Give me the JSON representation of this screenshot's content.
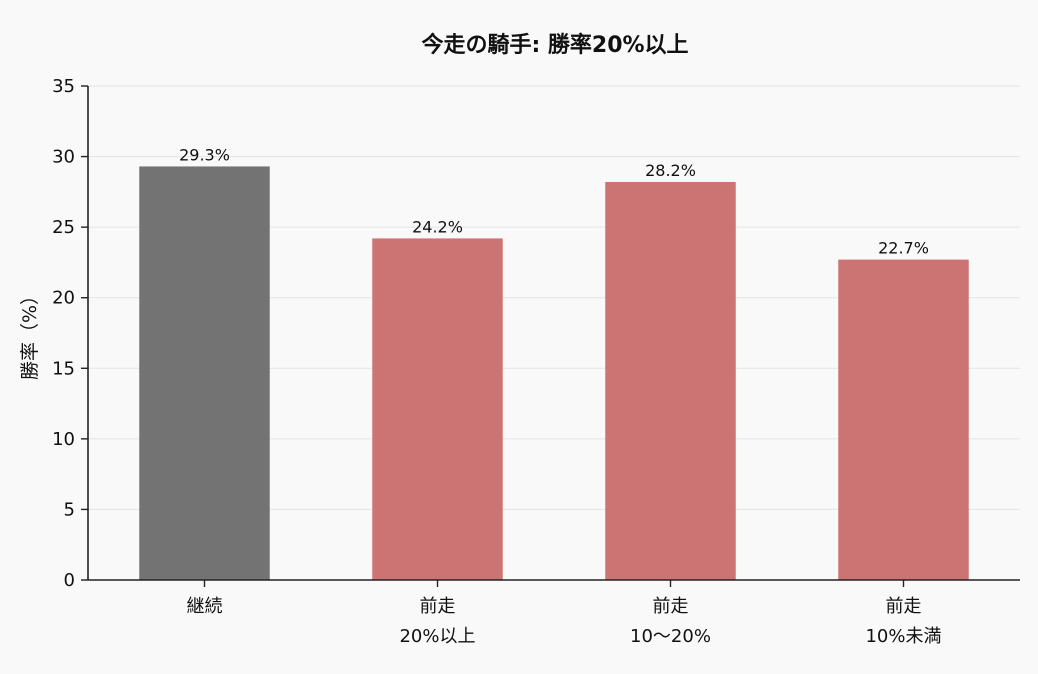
{
  "chart_data": {
    "type": "bar",
    "title": "今走の騎手: 勝率20%以上",
    "xlabel": "",
    "ylabel": "勝率（%）",
    "ylim": [
      0,
      35
    ],
    "yticks": [
      0,
      5,
      10,
      15,
      20,
      25,
      30,
      35
    ],
    "grid": true,
    "categories": [
      [
        "継続"
      ],
      [
        "前走",
        "20%以上"
      ],
      [
        "前走",
        "10〜20%"
      ],
      [
        "前走",
        "10%未満"
      ]
    ],
    "values": [
      29.3,
      24.2,
      28.2,
      22.7
    ],
    "data_labels": [
      "29.3%",
      "24.2%",
      "28.2%",
      "22.7%"
    ],
    "colors": [
      "#737373",
      "#cc7473",
      "#cc7473",
      "#cc7473"
    ]
  }
}
